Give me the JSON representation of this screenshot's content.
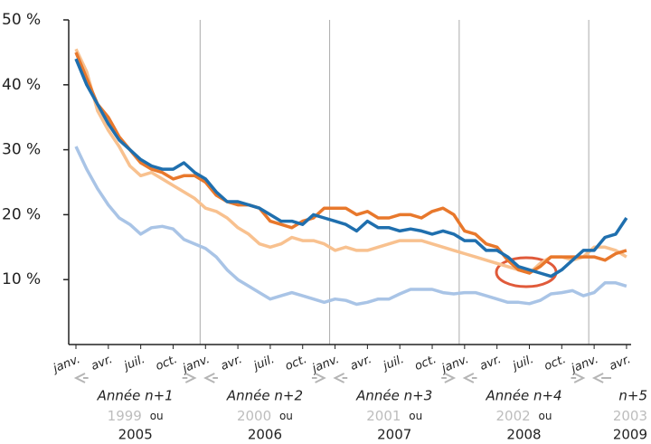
{
  "chart_data": {
    "type": "line",
    "categories": [
      "janv.",
      null,
      null,
      "avr.",
      null,
      null,
      "juil.",
      null,
      null,
      "oct.",
      null,
      null,
      "janv.",
      null,
      null,
      "avr.",
      null,
      null,
      "juil.",
      null,
      null,
      "oct.",
      null,
      null,
      "janv.",
      null,
      null,
      "avr.",
      null,
      null,
      "juil.",
      null,
      null,
      "oct.",
      null,
      null,
      "janv.",
      null,
      null,
      "avr.",
      null,
      null,
      "juil.",
      null,
      null,
      "oct.",
      null,
      null,
      "janv.",
      null,
      null,
      "avr."
    ],
    "series": [
      {
        "color": "#f8c18f",
        "values": [
          45.5,
          42,
          36,
          33,
          30.5,
          27.5,
          26,
          26.5,
          25.5,
          24.5,
          23.5,
          22.5,
          21,
          20.5,
          19.5,
          18,
          17,
          15.5,
          15,
          15.5,
          16.5,
          16,
          16,
          15.5,
          14.5,
          15,
          14.5,
          14.5,
          15,
          15.5,
          16,
          16,
          16,
          15.5,
          15,
          14.5,
          14,
          13.5,
          13,
          12.5,
          12,
          11.5,
          11,
          12.5,
          13.5,
          13.5,
          13,
          13.5,
          15,
          15,
          14.5,
          13.5
        ]
      },
      {
        "color": "#a9c4e6",
        "values": [
          30.5,
          27,
          24,
          21.5,
          19.5,
          18.5,
          17,
          18,
          18.2,
          17.8,
          16.2,
          15.5,
          14.8,
          13.5,
          11.5,
          10,
          9,
          8,
          7,
          7.5,
          8,
          7.5,
          7,
          6.5,
          7,
          6.8,
          6.2,
          6.5,
          7,
          7,
          7.8,
          8.5,
          8.5,
          8.5,
          8,
          7.8,
          8,
          8,
          7.5,
          7,
          6.5,
          6.5,
          6.3,
          6.8,
          7.8,
          8,
          8.3,
          7.5,
          8,
          9.5,
          9.5,
          9
        ]
      },
      {
        "color": "#e8782c",
        "values": [
          45,
          41,
          37,
          35,
          32,
          30,
          28,
          27,
          26.5,
          25.5,
          26,
          26,
          25,
          23,
          22,
          21.5,
          21.5,
          21,
          19,
          18.5,
          18,
          19,
          19.5,
          21,
          21,
          21,
          20,
          20.5,
          19.5,
          19.5,
          20,
          20,
          19.5,
          20.5,
          21,
          20,
          17.5,
          17,
          15.5,
          15,
          13,
          11.5,
          11,
          12,
          13.5,
          13.5,
          13.5,
          13.5,
          13.5,
          13,
          14,
          14.5
        ]
      },
      {
        "color": "#1f6fae",
        "values": [
          44,
          40,
          37,
          34,
          31.5,
          30,
          28.5,
          27.5,
          27,
          27,
          28,
          26.5,
          25.5,
          23.5,
          22,
          22,
          21.5,
          21,
          20,
          19,
          19,
          18.5,
          20,
          19.5,
          19,
          18.5,
          17.5,
          19,
          18,
          18,
          17.5,
          17.8,
          17.5,
          17,
          17.5,
          17,
          16,
          16,
          14.5,
          14.5,
          13.5,
          12,
          11.5,
          11,
          10.5,
          11.5,
          13,
          14.5,
          14.5,
          16.5,
          17,
          19.5
        ]
      }
    ],
    "ylim": [
      0,
      50
    ],
    "yticks": [
      {
        "value": 10,
        "label": "10 %"
      },
      {
        "value": 20,
        "label": "20 %"
      },
      {
        "value": 30,
        "label": "30 %"
      },
      {
        "value": 40,
        "label": "40 %"
      },
      {
        "value": 50,
        "label": "50 %"
      }
    ],
    "year_groups": [
      {
        "label": "Année n+1",
        "alt_year": "1999",
        "connector": "ou",
        "year": "2005"
      },
      {
        "label": "Année n+2",
        "alt_year": "2000",
        "connector": "ou",
        "year": "2006"
      },
      {
        "label": "Année n+3",
        "alt_year": "2001",
        "connector": "ou",
        "year": "2007"
      },
      {
        "label": "Année n+4",
        "alt_year": "2002",
        "connector": "ou",
        "year": "2008"
      },
      {
        "label": "n+5",
        "alt_year": "2003",
        "year": "2009"
      }
    ]
  }
}
